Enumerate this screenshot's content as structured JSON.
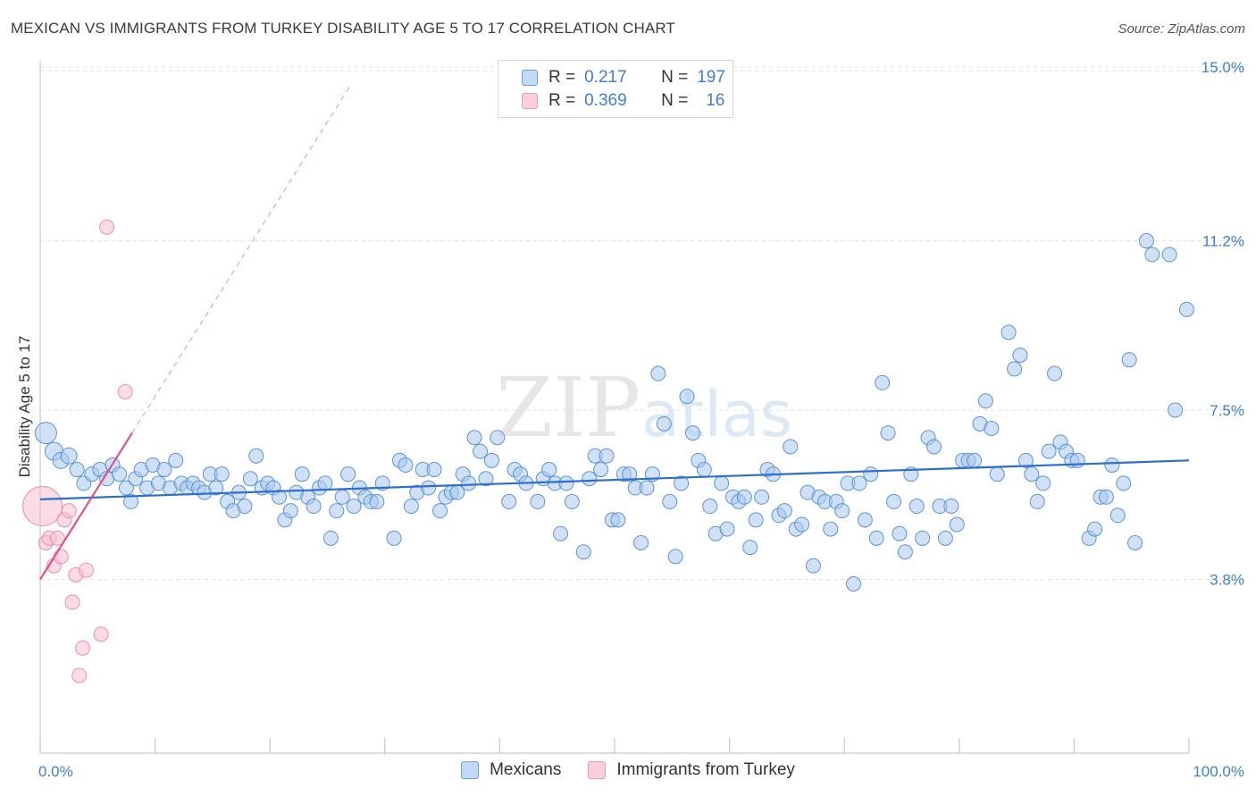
{
  "header": {
    "title": "MEXICAN VS IMMIGRANTS FROM TURKEY DISABILITY AGE 5 TO 17 CORRELATION CHART",
    "source": "Source: ZipAtlas.com"
  },
  "legend": {
    "rows": [
      {
        "r_label": "R =",
        "r_value": "0.217",
        "n_label": "N =",
        "n_value": "197"
      },
      {
        "r_label": "R =",
        "r_value": "0.369",
        "n_label": "N =",
        "n_value": "16"
      }
    ]
  },
  "bottom_legend": [
    "Mexicans",
    "Immigrants from Turkey"
  ],
  "watermark": {
    "zip": "ZIP",
    "atlas": "atlas"
  },
  "colors": {
    "blue_fill": "#a9c8ef",
    "blue_stroke": "#5b93d8",
    "blue_line": "#2d6fcf",
    "pink_fill": "#f7c0d0",
    "pink_stroke": "#ea8fab",
    "pink_line": "#e0508a",
    "tick_text": "#3f7fd0",
    "grid": "#e2e2e2"
  },
  "chart_data": {
    "type": "scatter",
    "title": "MEXICAN VS IMMIGRANTS FROM TURKEY DISABILITY AGE 5 TO 17 CORRELATION CHART",
    "xlabel": "",
    "ylabel": "Disability Age 5 to 17",
    "xlim": [
      0,
      100
    ],
    "ylim": [
      0,
      15.5
    ],
    "x_tick_labels": [
      "0.0%",
      "100.0%"
    ],
    "y_ticks": [
      3.8,
      7.5,
      11.2,
      15.0
    ],
    "y_tick_labels": [
      "3.8%",
      "7.5%",
      "11.2%",
      "15.0%"
    ],
    "grid": "horizontal dashed",
    "legend_placement": "top-center",
    "series": [
      {
        "name": "Mexicans",
        "r": 0.217,
        "n": 197,
        "trend": {
          "x": [
            0,
            100
          ],
          "y": [
            5.55,
            6.4
          ]
        },
        "points": [
          [
            0.5,
            7.0,
            12
          ],
          [
            1.2,
            6.6,
            10
          ],
          [
            1.8,
            6.4,
            9
          ],
          [
            2.5,
            6.5,
            9
          ],
          [
            3.2,
            6.2,
            8
          ],
          [
            3.8,
            5.9,
            8
          ],
          [
            4.5,
            6.1,
            8
          ],
          [
            5.2,
            6.2,
            8
          ],
          [
            5.8,
            6.0,
            8
          ],
          [
            6.3,
            6.3,
            8
          ],
          [
            6.9,
            6.1,
            8
          ],
          [
            7.5,
            5.8,
            8
          ],
          [
            7.9,
            5.5,
            8
          ],
          [
            8.3,
            6.0,
            8
          ],
          [
            8.8,
            6.2,
            8
          ],
          [
            9.3,
            5.8,
            8
          ],
          [
            9.8,
            6.3,
            8
          ],
          [
            10.3,
            5.9,
            8
          ],
          [
            10.8,
            6.2,
            8
          ],
          [
            11.3,
            5.8,
            8
          ],
          [
            11.8,
            6.4,
            8
          ],
          [
            12.3,
            5.9,
            8
          ],
          [
            12.8,
            5.8,
            8
          ],
          [
            13.3,
            5.9,
            8
          ],
          [
            13.8,
            5.8,
            8
          ],
          [
            14.3,
            5.7,
            8
          ],
          [
            14.8,
            6.1,
            8
          ],
          [
            15.3,
            5.8,
            8
          ],
          [
            15.8,
            6.1,
            8
          ],
          [
            16.3,
            5.5,
            8
          ],
          [
            16.8,
            5.3,
            8
          ],
          [
            17.3,
            5.7,
            8
          ],
          [
            17.8,
            5.4,
            8
          ],
          [
            18.3,
            6.0,
            8
          ],
          [
            18.8,
            6.5,
            8
          ],
          [
            19.3,
            5.8,
            8
          ],
          [
            19.8,
            5.9,
            8
          ],
          [
            20.3,
            5.8,
            8
          ],
          [
            20.8,
            5.6,
            8
          ],
          [
            21.3,
            5.1,
            8
          ],
          [
            21.8,
            5.3,
            8
          ],
          [
            22.3,
            5.7,
            8
          ],
          [
            22.8,
            6.1,
            8
          ],
          [
            23.3,
            5.6,
            8
          ],
          [
            23.8,
            5.4,
            8
          ],
          [
            24.3,
            5.8,
            8
          ],
          [
            24.8,
            5.9,
            8
          ],
          [
            25.3,
            4.7,
            8
          ],
          [
            25.8,
            5.3,
            8
          ],
          [
            26.3,
            5.6,
            8
          ],
          [
            26.8,
            6.1,
            8
          ],
          [
            27.3,
            5.4,
            8
          ],
          [
            27.8,
            5.8,
            8
          ],
          [
            28.3,
            5.6,
            8
          ],
          [
            28.8,
            5.5,
            8
          ],
          [
            29.3,
            5.5,
            8
          ],
          [
            29.8,
            5.9,
            8
          ],
          [
            30.8,
            4.7,
            8
          ],
          [
            31.3,
            6.4,
            8
          ],
          [
            31.8,
            6.3,
            8
          ],
          [
            32.3,
            5.4,
            8
          ],
          [
            32.8,
            5.7,
            8
          ],
          [
            33.3,
            6.2,
            8
          ],
          [
            33.8,
            5.8,
            8
          ],
          [
            34.3,
            6.2,
            8
          ],
          [
            34.8,
            5.3,
            8
          ],
          [
            35.3,
            5.6,
            8
          ],
          [
            35.8,
            5.7,
            8
          ],
          [
            36.3,
            5.7,
            8
          ],
          [
            36.8,
            6.1,
            8
          ],
          [
            37.3,
            5.9,
            8
          ],
          [
            37.8,
            6.9,
            8
          ],
          [
            38.3,
            6.6,
            8
          ],
          [
            38.8,
            6.0,
            8
          ],
          [
            39.3,
            6.4,
            8
          ],
          [
            39.8,
            6.9,
            8
          ],
          [
            40.8,
            5.5,
            8
          ],
          [
            41.3,
            6.2,
            8
          ],
          [
            41.8,
            6.1,
            8
          ],
          [
            42.3,
            5.9,
            8
          ],
          [
            43.3,
            5.5,
            8
          ],
          [
            43.8,
            6.0,
            8
          ],
          [
            44.3,
            6.2,
            8
          ],
          [
            44.8,
            5.9,
            8
          ],
          [
            45.3,
            4.8,
            8
          ],
          [
            45.8,
            5.9,
            8
          ],
          [
            46.3,
            5.5,
            8
          ],
          [
            47.3,
            4.4,
            8
          ],
          [
            47.8,
            6.0,
            8
          ],
          [
            48.3,
            6.5,
            8
          ],
          [
            48.8,
            6.2,
            8
          ],
          [
            49.3,
            6.5,
            8
          ],
          [
            49.8,
            5.1,
            8
          ],
          [
            50.3,
            5.1,
            8
          ],
          [
            50.8,
            6.1,
            8
          ],
          [
            51.3,
            6.1,
            8
          ],
          [
            51.8,
            5.8,
            8
          ],
          [
            52.3,
            4.6,
            8
          ],
          [
            52.8,
            5.8,
            8
          ],
          [
            53.3,
            6.1,
            8
          ],
          [
            53.8,
            8.3,
            8
          ],
          [
            54.3,
            7.2,
            8
          ],
          [
            54.8,
            5.5,
            8
          ],
          [
            55.3,
            4.3,
            8
          ],
          [
            55.8,
            5.9,
            8
          ],
          [
            56.3,
            7.8,
            8
          ],
          [
            56.8,
            7.0,
            8
          ],
          [
            57.3,
            6.4,
            8
          ],
          [
            57.8,
            6.2,
            8
          ],
          [
            58.3,
            5.4,
            8
          ],
          [
            58.8,
            4.8,
            8
          ],
          [
            59.3,
            5.9,
            8
          ],
          [
            59.8,
            4.9,
            8
          ],
          [
            60.3,
            5.6,
            8
          ],
          [
            60.8,
            5.5,
            8
          ],
          [
            61.3,
            5.6,
            8
          ],
          [
            61.8,
            4.5,
            8
          ],
          [
            62.3,
            5.1,
            8
          ],
          [
            62.8,
            5.6,
            8
          ],
          [
            63.3,
            6.2,
            8
          ],
          [
            63.8,
            6.1,
            8
          ],
          [
            64.3,
            5.2,
            8
          ],
          [
            64.8,
            5.3,
            8
          ],
          [
            65.3,
            6.7,
            8
          ],
          [
            65.8,
            4.9,
            8
          ],
          [
            66.3,
            5.0,
            8
          ],
          [
            66.8,
            5.7,
            8
          ],
          [
            67.3,
            4.1,
            8
          ],
          [
            67.8,
            5.6,
            8
          ],
          [
            68.3,
            5.5,
            8
          ],
          [
            68.8,
            4.9,
            8
          ],
          [
            69.3,
            5.5,
            8
          ],
          [
            69.8,
            5.3,
            8
          ],
          [
            70.3,
            5.9,
            8
          ],
          [
            70.8,
            3.7,
            8
          ],
          [
            71.3,
            5.9,
            8
          ],
          [
            71.8,
            5.1,
            8
          ],
          [
            72.3,
            6.1,
            8
          ],
          [
            72.8,
            4.7,
            8
          ],
          [
            73.3,
            8.1,
            8
          ],
          [
            73.8,
            7.0,
            8
          ],
          [
            74.3,
            5.5,
            8
          ],
          [
            74.8,
            4.8,
            8
          ],
          [
            75.3,
            4.4,
            8
          ],
          [
            75.8,
            6.1,
            8
          ],
          [
            76.3,
            5.4,
            8
          ],
          [
            76.8,
            4.7,
            8
          ],
          [
            77.3,
            6.9,
            8
          ],
          [
            77.8,
            6.7,
            8
          ],
          [
            78.3,
            5.4,
            8
          ],
          [
            78.8,
            4.7,
            8
          ],
          [
            79.3,
            5.4,
            8
          ],
          [
            79.8,
            5.0,
            8
          ],
          [
            80.3,
            6.4,
            8
          ],
          [
            80.8,
            6.4,
            8
          ],
          [
            81.3,
            6.4,
            8
          ],
          [
            81.8,
            7.2,
            8
          ],
          [
            82.3,
            7.7,
            8
          ],
          [
            82.8,
            7.1,
            8
          ],
          [
            83.3,
            6.1,
            8
          ],
          [
            84.3,
            9.2,
            8
          ],
          [
            84.8,
            8.4,
            8
          ],
          [
            85.3,
            8.7,
            8
          ],
          [
            85.8,
            6.4,
            8
          ],
          [
            86.3,
            6.1,
            8
          ],
          [
            86.8,
            5.5,
            8
          ],
          [
            87.3,
            5.9,
            8
          ],
          [
            87.8,
            6.6,
            8
          ],
          [
            88.3,
            8.3,
            8
          ],
          [
            88.8,
            6.8,
            8
          ],
          [
            89.3,
            6.6,
            8
          ],
          [
            89.8,
            6.4,
            8
          ],
          [
            90.3,
            6.4,
            8
          ],
          [
            91.3,
            4.7,
            8
          ],
          [
            91.8,
            4.9,
            8
          ],
          [
            92.3,
            5.6,
            8
          ],
          [
            92.8,
            5.6,
            8
          ],
          [
            93.3,
            6.3,
            8
          ],
          [
            93.8,
            5.2,
            8
          ],
          [
            94.3,
            5.9,
            8
          ],
          [
            94.8,
            8.6,
            8
          ],
          [
            95.3,
            4.6,
            8
          ],
          [
            96.3,
            11.2,
            8
          ],
          [
            96.8,
            10.9,
            8
          ],
          [
            98.3,
            10.9,
            8
          ],
          [
            98.8,
            7.5,
            8
          ],
          [
            99.8,
            9.7,
            8
          ]
        ]
      },
      {
        "name": "Immigrants from Turkey",
        "r": 0.369,
        "n": 16,
        "trend": {
          "x": [
            0,
            8
          ],
          "y": [
            3.8,
            7.0
          ]
        },
        "trend_extension": {
          "x": [
            8,
            27
          ],
          "y": [
            7.0,
            14.6
          ]
        },
        "points": [
          [
            0.2,
            5.4,
            22
          ],
          [
            0.5,
            4.6,
            8
          ],
          [
            0.8,
            4.7,
            8
          ],
          [
            1.2,
            4.1,
            8
          ],
          [
            1.5,
            4.7,
            8
          ],
          [
            1.8,
            4.3,
            8
          ],
          [
            2.1,
            5.1,
            8
          ],
          [
            2.5,
            5.3,
            8
          ],
          [
            2.8,
            3.3,
            8
          ],
          [
            3.1,
            3.9,
            8
          ],
          [
            3.4,
            1.7,
            8
          ],
          [
            3.7,
            2.3,
            8
          ],
          [
            4.0,
            4.0,
            8
          ],
          [
            5.3,
            2.6,
            8
          ],
          [
            5.8,
            11.5,
            8
          ],
          [
            7.4,
            7.9,
            8
          ]
        ]
      }
    ]
  }
}
